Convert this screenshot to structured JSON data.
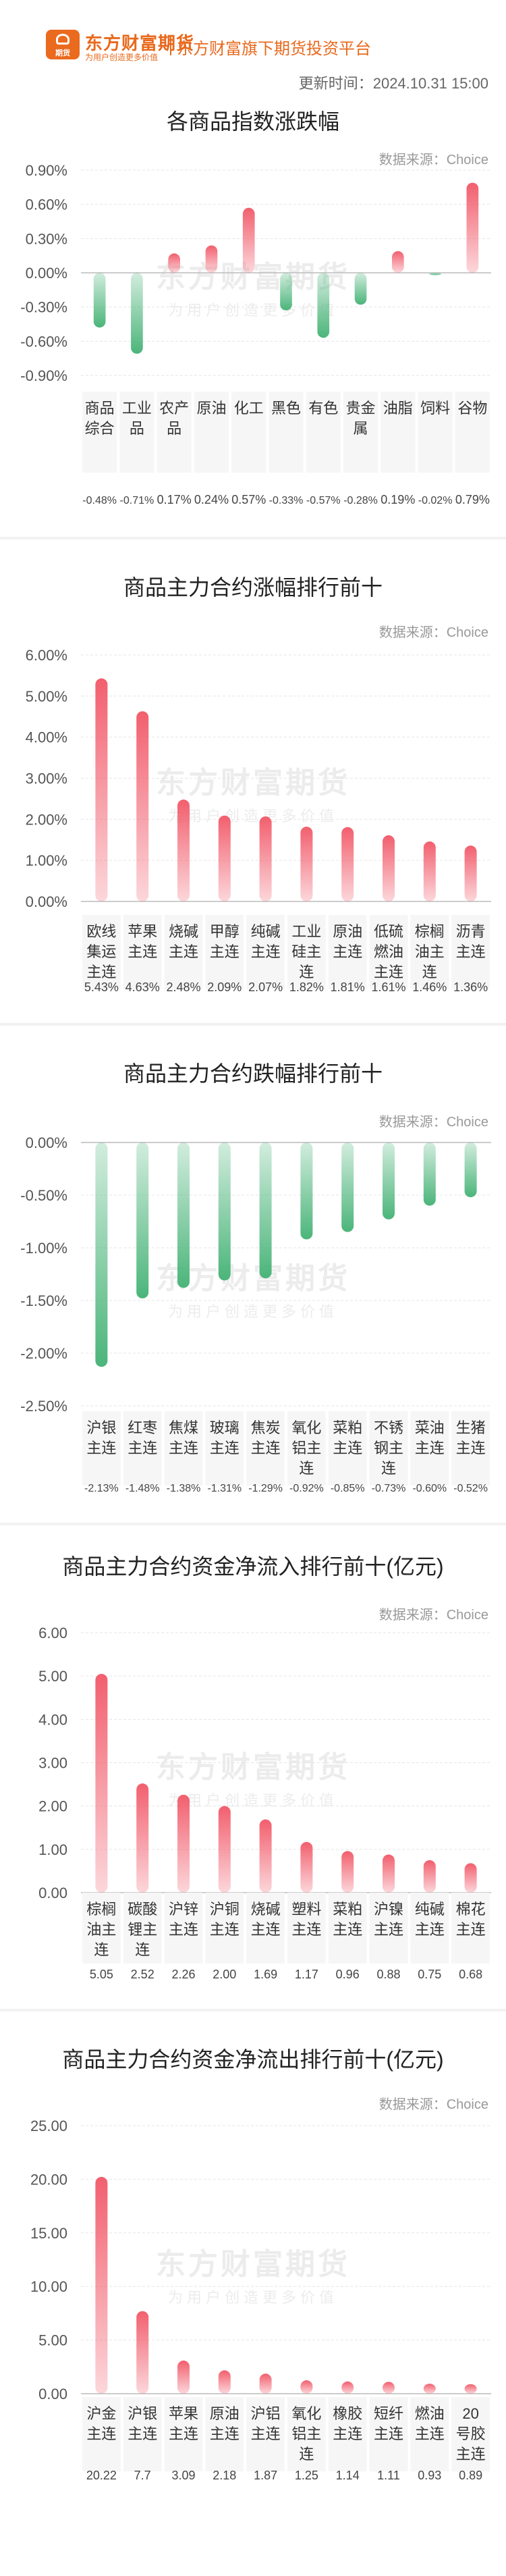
{
  "header": {
    "logo_text": "期货",
    "brand": "东方财富期货",
    "brand_sub": "为用户创造更多价值",
    "platform": "东方财富旗下期货投资平台",
    "update_time": "更新时间：2024.10.31 15:00"
  },
  "source_label": "数据来源：Choice",
  "watermark": {
    "main": "东方财富期货",
    "sub": "为用户创造更多价值"
  },
  "colors": {
    "rise": "#f25f6e",
    "fall": "#4bb57a",
    "brand": "#e8691d"
  },
  "chart_data": [
    {
      "type": "bar",
      "title": "各商品指数涨跌幅",
      "yticks": [
        "0.90%",
        "0.60%",
        "0.30%",
        "0.00%",
        "-0.30%",
        "-0.60%",
        "-0.90%"
      ],
      "ylim": [
        -0.9,
        0.9
      ],
      "categories": [
        "商品综合",
        "工业品",
        "农产品",
        "原油",
        "化工",
        "黑色",
        "有色",
        "贵金属",
        "油脂",
        "饲料",
        "谷物"
      ],
      "values": [
        -0.48,
        -0.71,
        0.17,
        0.24,
        0.57,
        -0.33,
        -0.57,
        -0.28,
        0.19,
        -0.02,
        0.79
      ],
      "value_labels": [
        "-0.48%",
        "-0.71%",
        "0.17%",
        "0.24%",
        "0.57%",
        "-0.33%",
        "-0.57%",
        "-0.28%",
        "0.19%",
        "-0.02%",
        "0.79%"
      ]
    },
    {
      "type": "bar",
      "title": "商品主力合约涨幅排行前十",
      "yticks": [
        "6.00%",
        "5.00%",
        "4.00%",
        "3.00%",
        "2.00%",
        "1.00%",
        "0.00%"
      ],
      "ylim": [
        0,
        6
      ],
      "categories": [
        "欧线集运主连",
        "苹果主连",
        "烧碱主连",
        "甲醇主连",
        "纯碱主连",
        "工业硅主连",
        "原油主连",
        "低硫燃油主连",
        "棕榈油主连",
        "沥青主连"
      ],
      "values": [
        5.43,
        4.63,
        2.48,
        2.09,
        2.07,
        1.82,
        1.81,
        1.61,
        1.46,
        1.36
      ],
      "value_labels": [
        "5.43%",
        "4.63%",
        "2.48%",
        "2.09%",
        "2.07%",
        "1.82%",
        "1.81%",
        "1.61%",
        "1.46%",
        "1.36%"
      ]
    },
    {
      "type": "bar",
      "title": "商品主力合约跌幅排行前十",
      "yticks": [
        "0.00%",
        "-0.50%",
        "-1.00%",
        "-1.50%",
        "-2.00%",
        "-2.50%"
      ],
      "ylim": [
        -2.5,
        0
      ],
      "categories": [
        "沪银主连",
        "红枣主连",
        "焦煤主连",
        "玻璃主连",
        "焦炭主连",
        "氧化铝主连",
        "菜粕主连",
        "不锈钢主连",
        "菜油主连",
        "生猪主连"
      ],
      "values": [
        -2.13,
        -1.48,
        -1.38,
        -1.31,
        -1.29,
        -0.92,
        -0.85,
        -0.73,
        -0.6,
        -0.52
      ],
      "value_labels": [
        "-2.13%",
        "-1.48%",
        "-1.38%",
        "-1.31%",
        "-1.29%",
        "-0.92%",
        "-0.85%",
        "-0.73%",
        "-0.60%",
        "-0.52%"
      ]
    },
    {
      "type": "bar",
      "title": "商品主力合约资金净流入排行前十(亿元)",
      "yticks": [
        "6.00",
        "5.00",
        "4.00",
        "3.00",
        "2.00",
        "1.00",
        "0.00"
      ],
      "ylim": [
        0,
        6
      ],
      "categories": [
        "棕榈油主连",
        "碳酸锂主连",
        "沪锌主连",
        "沪铜主连",
        "烧碱主连",
        "塑料主连",
        "菜粕主连",
        "沪镍主连",
        "纯碱主连",
        "棉花主连"
      ],
      "values": [
        5.05,
        2.52,
        2.26,
        2.0,
        1.69,
        1.17,
        0.96,
        0.88,
        0.75,
        0.68
      ],
      "value_labels": [
        "5.05",
        "2.52",
        "2.26",
        "2.00",
        "1.69",
        "1.17",
        "0.96",
        "0.88",
        "0.75",
        "0.68"
      ]
    },
    {
      "type": "bar",
      "title": "商品主力合约资金净流出排行前十(亿元)",
      "yticks": [
        "25.00",
        "20.00",
        "15.00",
        "10.00",
        "5.00",
        "0.00"
      ],
      "ylim": [
        0,
        25
      ],
      "categories": [
        "沪金主连",
        "沪银主连",
        "苹果主连",
        "原油主连",
        "沪铝主连",
        "氧化铝主连",
        "橡胶主连",
        "短纤主连",
        "燃油主连",
        "20号胶主连"
      ],
      "values": [
        20.22,
        7.7,
        3.09,
        2.18,
        1.87,
        1.25,
        1.14,
        1.11,
        0.93,
        0.89
      ],
      "value_labels": [
        "20.22",
        "7.7",
        "3.09",
        "2.18",
        "1.87",
        "1.25",
        "1.14",
        "1.11",
        "0.93",
        "0.89"
      ]
    }
  ]
}
